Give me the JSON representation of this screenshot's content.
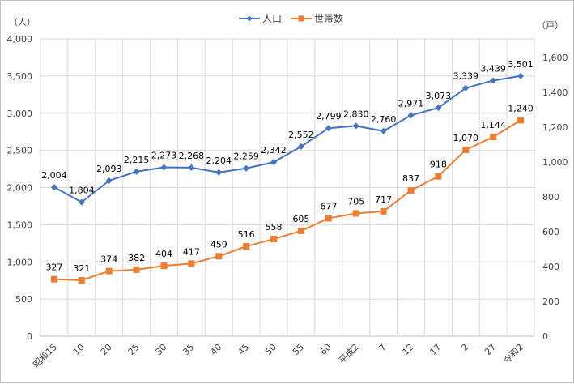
{
  "chart_data": {
    "type": "line",
    "title": "",
    "categories": [
      "昭和15",
      "10",
      "20",
      "25",
      "30",
      "35",
      "40",
      "45",
      "50",
      "55",
      "60",
      "平成2",
      "7",
      "12",
      "17",
      "2",
      "27",
      "令和2"
    ],
    "ylabel_left": "（人）",
    "ylabel_right": "（戸）",
    "ylim_left": [
      0,
      4000
    ],
    "ylim_right": [
      0,
      1600
    ],
    "yticks_left": [
      "0",
      "500",
      "1,000",
      "1,500",
      "2,000",
      "2,500",
      "3,000",
      "3,500",
      "4,000"
    ],
    "yticks_right": [
      "0",
      "200",
      "400",
      "600",
      "800",
      "1,000",
      "1,200",
      "1,400",
      "1,600"
    ],
    "grid": true,
    "legend_position": "top",
    "series": [
      {
        "name": "人口",
        "axis": "left",
        "color": "#4472c4",
        "marker": "diamond",
        "values": [
          2004,
          1804,
          2093,
          2215,
          2273,
          2268,
          2204,
          2259,
          2342,
          2552,
          2799,
          2830,
          2760,
          2971,
          3073,
          3339,
          3439,
          3501
        ],
        "labels": [
          "2,004",
          "1,804",
          "2,093",
          "2,215",
          "2,273",
          "2,268",
          "2,204",
          "2,259",
          "2,342",
          "2,552",
          "2,799",
          "2,830",
          "2,760",
          "2,971",
          "3,073",
          "3,339",
          "3,439",
          "3,501"
        ]
      },
      {
        "name": "世帯数",
        "axis": "right",
        "color": "#ed7d31",
        "marker": "square",
        "values": [
          327,
          321,
          374,
          382,
          404,
          417,
          459,
          516,
          558,
          605,
          677,
          705,
          717,
          837,
          918,
          1070,
          1144,
          1240
        ],
        "labels": [
          "327",
          "321",
          "374",
          "382",
          "404",
          "417",
          "459",
          "516",
          "558",
          "605",
          "677",
          "705",
          "717",
          "837",
          "918",
          "1,070",
          "1,144",
          "1,240"
        ]
      }
    ]
  }
}
